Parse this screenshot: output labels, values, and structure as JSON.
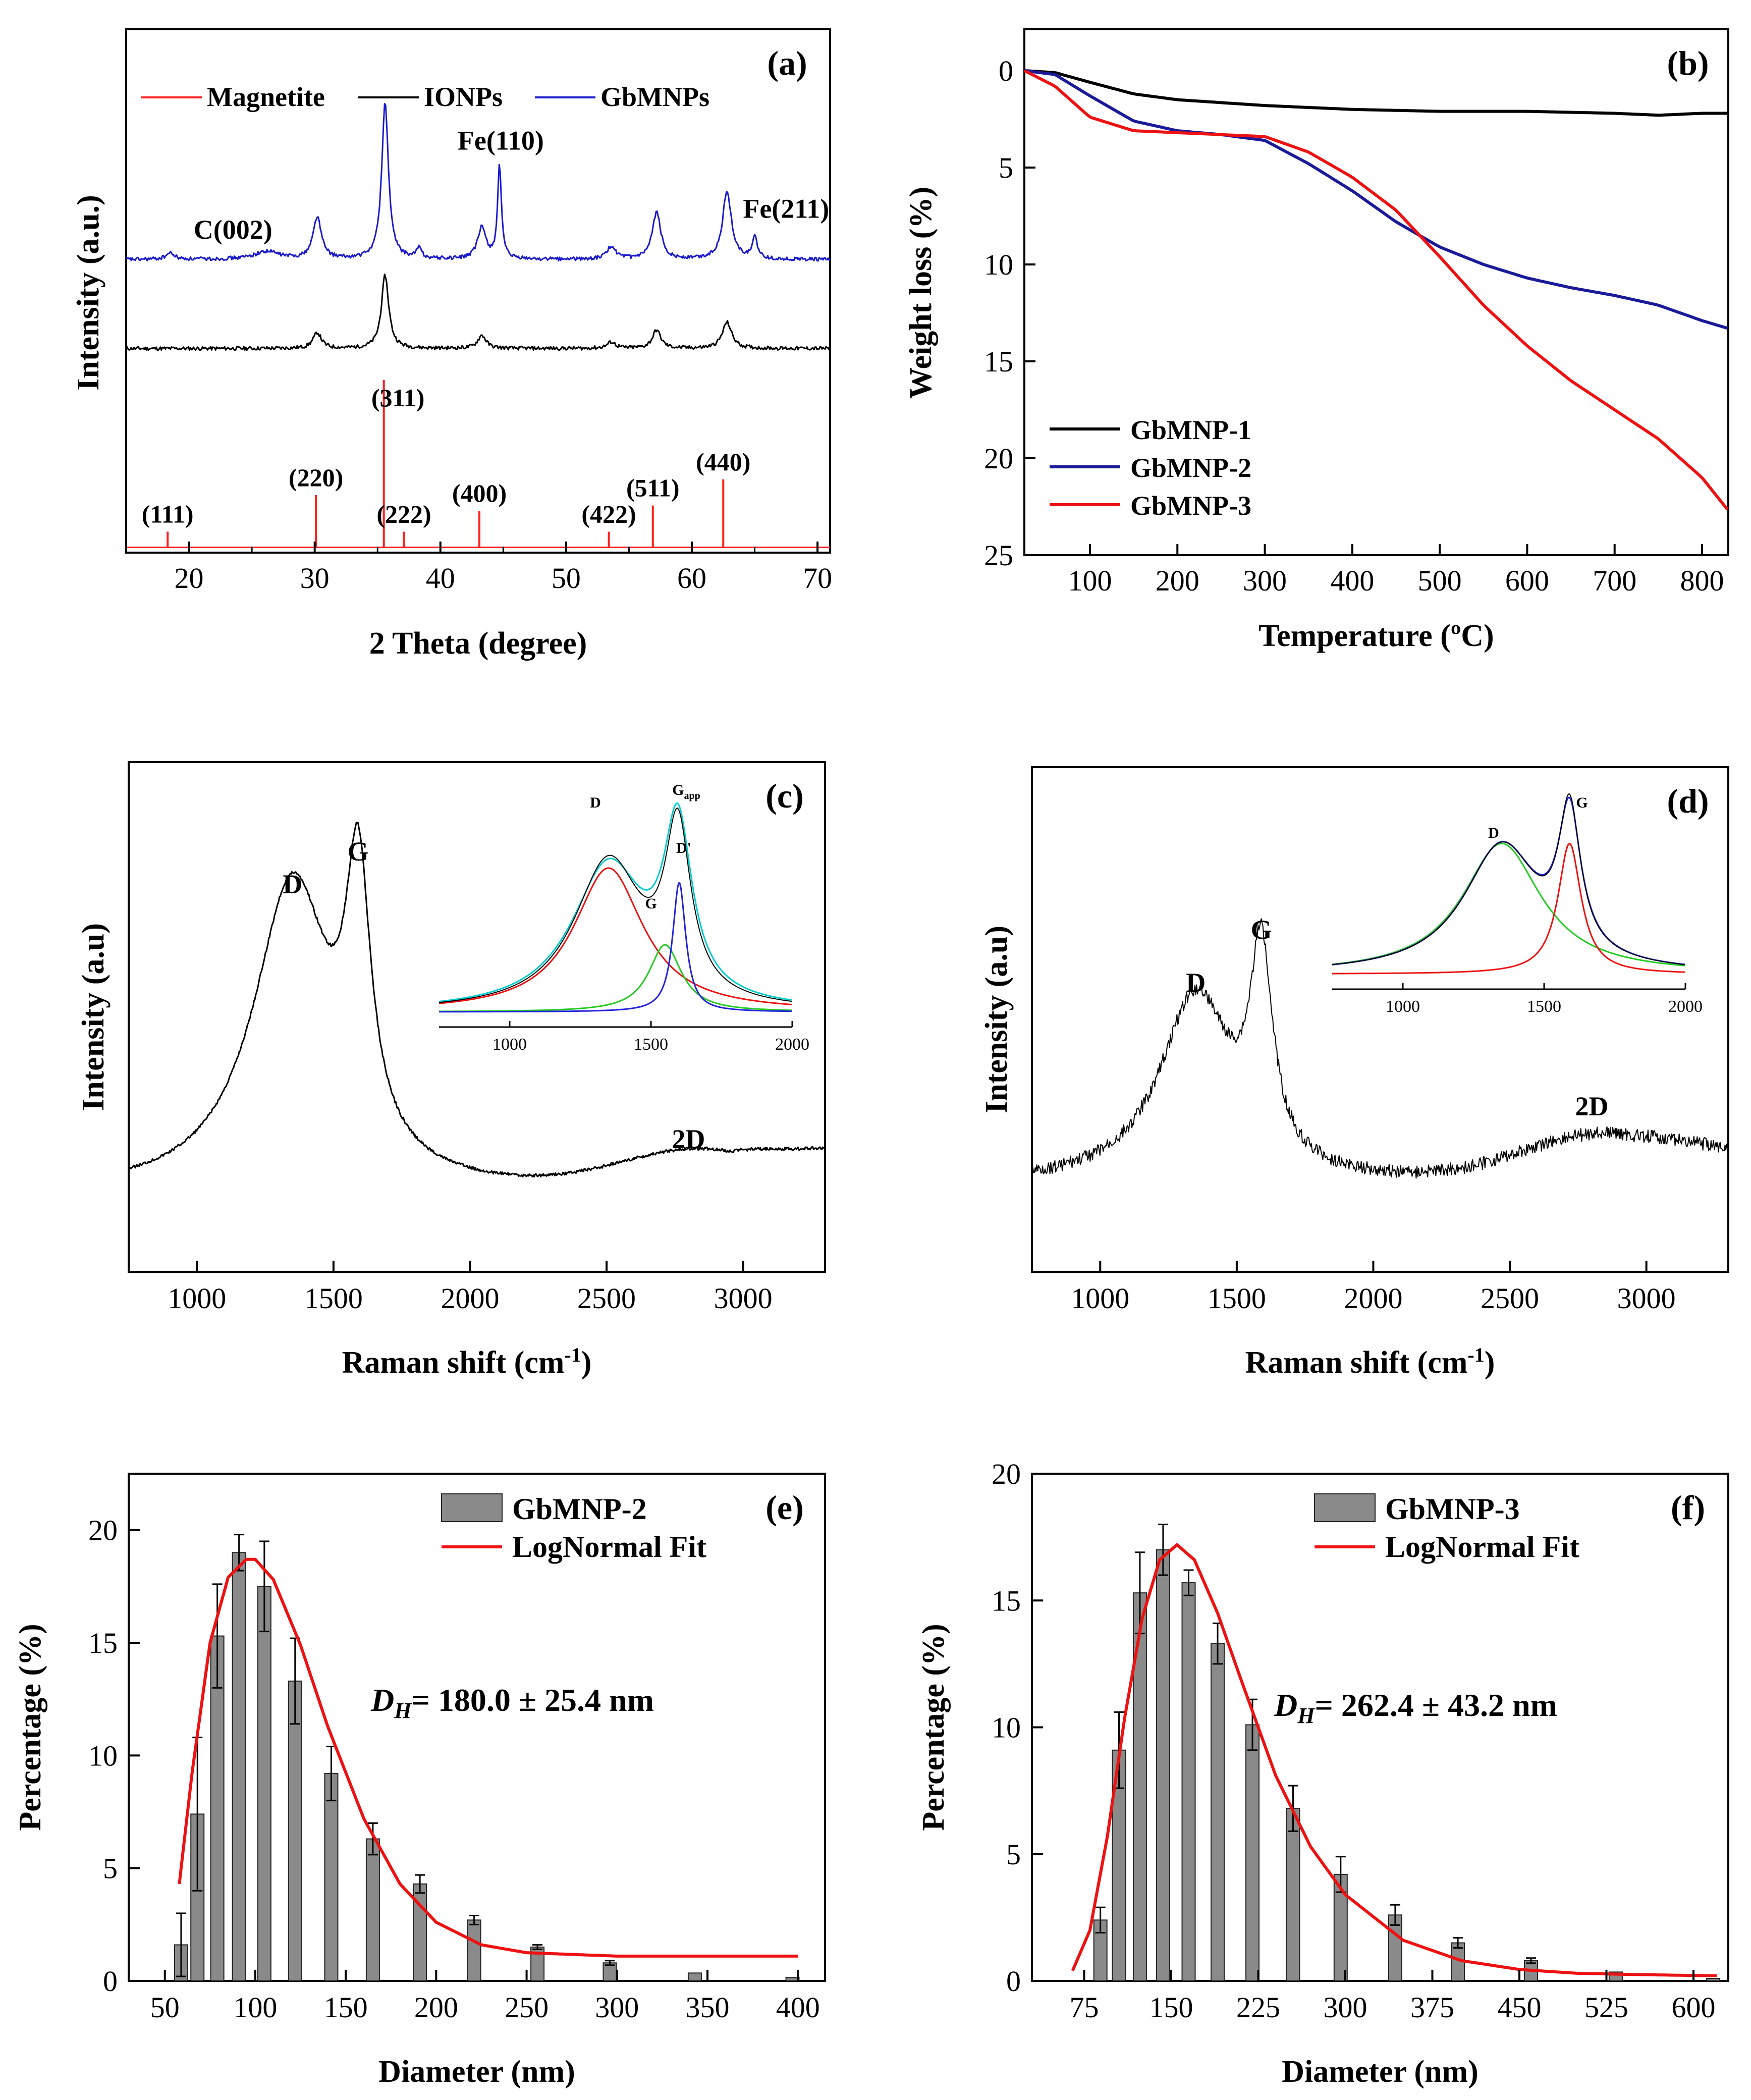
{
  "figure": "Six-panel materials characterization figure",
  "chart_data": [
    {
      "id": "a",
      "type": "line",
      "panel_label": "(a)",
      "xlabel": "2 Theta (degree)",
      "ylabel": "Intensity (a.u.)",
      "xlim": [
        15,
        71
      ],
      "ylim": [
        0,
        100
      ],
      "xticks": [
        20,
        30,
        40,
        50,
        60,
        70
      ],
      "legend": [
        {
          "label": "Magnetite",
          "color": "#ff2020"
        },
        {
          "label": "IONPs",
          "color": "#000000"
        },
        {
          "label": "GbMNPs",
          "color": "#1a1acc"
        }
      ],
      "reference_lines": [
        {
          "x": 18.3,
          "h": 3,
          "label": "(111)"
        },
        {
          "x": 30.1,
          "h": 10,
          "label": "(220)"
        },
        {
          "x": 35.5,
          "h": 32,
          "label": "(311)"
        },
        {
          "x": 37.1,
          "h": 3,
          "label": "(222)"
        },
        {
          "x": 43.1,
          "h": 7,
          "label": "(400)"
        },
        {
          "x": 53.4,
          "h": 3,
          "label": "(422)"
        },
        {
          "x": 56.9,
          "h": 8,
          "label": "(511)"
        },
        {
          "x": 62.5,
          "h": 13,
          "label": "(440)"
        }
      ],
      "series": [
        {
          "name": "IONPs",
          "baseline": 39,
          "peaks": [
            [
              30.2,
              3,
              0.4
            ],
            [
              35.6,
              14,
              0.35
            ],
            [
              43.3,
              2.5,
              0.4
            ],
            [
              53.6,
              1.2,
              0.4
            ],
            [
              57.2,
              3.5,
              0.4
            ],
            [
              62.8,
              5,
              0.45
            ]
          ]
        },
        {
          "name": "GbMNPs",
          "baseline": 56,
          "peaks": [
            [
              18.5,
              1.2,
              0.4
            ],
            [
              26.2,
              1.5,
              1.2
            ],
            [
              30.2,
              8,
              0.4
            ],
            [
              35.6,
              30,
              0.32
            ],
            [
              38.3,
              2,
              0.25
            ],
            [
              43.3,
              6,
              0.4
            ],
            [
              44.7,
              18,
              0.18
            ],
            [
              53.6,
              2.5,
              0.4
            ],
            [
              57.2,
              9,
              0.4
            ],
            [
              62.8,
              13,
              0.42
            ],
            [
              65.0,
              4,
              0.25
            ]
          ]
        }
      ],
      "annotations": [
        {
          "x": 23.5,
          "y": 60,
          "label": "C(002)"
        },
        {
          "x": 44.8,
          "y": 77,
          "label": "Fe(110)"
        },
        {
          "x": 67.5,
          "y": 64,
          "label": "Fe(211)"
        }
      ]
    },
    {
      "id": "b",
      "type": "line",
      "panel_label": "(b)",
      "xlabel": "Temperature (ºC)",
      "ylabel": "Weight loss (%)",
      "xlim": [
        25,
        830
      ],
      "ylim": [
        0,
        25
      ],
      "y_inverted": true,
      "xticks": [
        100,
        200,
        300,
        400,
        500,
        600,
        700,
        800
      ],
      "yticks": [
        0,
        5,
        10,
        15,
        20,
        25
      ],
      "series": [
        {
          "name": "GbMNP-1",
          "color": "#000000",
          "x": [
            25,
            60,
            100,
            150,
            200,
            300,
            400,
            500,
            600,
            700,
            750,
            800,
            830
          ],
          "y": [
            0,
            0.1,
            0.6,
            1.2,
            1.5,
            1.8,
            2.0,
            2.1,
            2.1,
            2.2,
            2.3,
            2.2,
            2.2
          ]
        },
        {
          "name": "GbMNP-2",
          "color": "#1a1a99",
          "x": [
            25,
            60,
            100,
            150,
            200,
            250,
            300,
            350,
            400,
            450,
            500,
            550,
            600,
            650,
            700,
            750,
            800,
            830
          ],
          "y": [
            0,
            0.2,
            1.3,
            2.6,
            3.1,
            3.3,
            3.6,
            4.8,
            6.2,
            7.8,
            9.1,
            10.0,
            10.7,
            11.2,
            11.6,
            12.1,
            12.9,
            13.3
          ]
        },
        {
          "name": "GbMNP-3",
          "color": "#ee1111",
          "x": [
            25,
            60,
            100,
            150,
            200,
            250,
            300,
            350,
            400,
            450,
            500,
            550,
            600,
            650,
            700,
            750,
            800,
            830
          ],
          "y": [
            0,
            0.8,
            2.4,
            3.1,
            3.2,
            3.3,
            3.4,
            4.2,
            5.5,
            7.2,
            9.6,
            12.1,
            14.2,
            16.0,
            17.5,
            19.0,
            21.0,
            22.7
          ]
        }
      ],
      "legend_position": "lower-left"
    },
    {
      "id": "c",
      "type": "line",
      "panel_label": "(c)",
      "xlabel": "Raman shift (cm-1)",
      "ylabel": "Intensity (a.u)",
      "xlim": [
        750,
        3300
      ],
      "xticks": [
        1000,
        1500,
        2000,
        2500,
        3000
      ],
      "peak_labels": [
        "D",
        "G",
        "2D"
      ],
      "inset": {
        "xlim": [
          750,
          2000
        ],
        "xticks": [
          1000,
          1500,
          2000
        ],
        "labels": [
          "D",
          "Gapp",
          "G",
          "D'"
        ]
      }
    },
    {
      "id": "d",
      "type": "line",
      "panel_label": "(d)",
      "xlabel": "Raman shift (cm-1)",
      "ylabel": "Intensity (a.u)",
      "xlim": [
        750,
        3300
      ],
      "xticks": [
        1000,
        1500,
        2000,
        2500,
        3000
      ],
      "peak_labels": [
        "D",
        "G",
        "2D"
      ],
      "inset": {
        "xlim": [
          750,
          2000
        ],
        "xticks": [
          1000,
          1500,
          2000
        ],
        "labels": [
          "D",
          "G"
        ]
      }
    },
    {
      "id": "e",
      "type": "bar",
      "panel_label": "(e)",
      "xlabel": "Diameter (nm)",
      "ylabel": "Percentage (%)",
      "xlim": [
        30,
        415
      ],
      "ylim": [
        0,
        22.5
      ],
      "xticks": [
        50,
        100,
        150,
        200,
        250,
        300,
        350,
        400
      ],
      "yticks": [
        0,
        5,
        10,
        15,
        20
      ],
      "legend": [
        "GbMNP-2",
        "LogNormal Fit"
      ],
      "annotation": "DH= 180.0 ± 25.4 nm",
      "x": [
        59,
        68,
        79,
        91,
        105,
        122,
        142,
        165,
        191,
        221,
        256,
        296,
        343,
        397
      ],
      "values": [
        1.6,
        7.4,
        15.3,
        19.0,
        17.5,
        13.3,
        9.2,
        6.3,
        4.3,
        2.7,
        1.5,
        0.8,
        0.35,
        0.15
      ],
      "errors": [
        1.4,
        3.4,
        2.3,
        0.8,
        2.0,
        1.9,
        1.2,
        0.7,
        0.4,
        0.2,
        0.1,
        0.1,
        0.05,
        0.05
      ],
      "fit": {
        "x": [
          58,
          65,
          75,
          85,
          95,
          100,
          110,
          125,
          140,
          160,
          180,
          200,
          225,
          250,
          300,
          400
        ],
        "y": [
          4.3,
          9.2,
          15.0,
          17.9,
          18.7,
          18.7,
          17.8,
          14.9,
          11.3,
          7.2,
          4.3,
          2.6,
          1.6,
          1.25,
          1.1,
          1.1
        ]
      }
    },
    {
      "id": "f",
      "type": "bar",
      "panel_label": "(f)",
      "xlabel": "Diameter (nm)",
      "ylabel": "Percentage (%)",
      "xlim": [
        30,
        630
      ],
      "ylim": [
        0,
        20
      ],
      "xticks": [
        75,
        150,
        225,
        300,
        375,
        450,
        525,
        600
      ],
      "yticks": [
        0,
        5,
        10,
        15,
        20
      ],
      "legend": [
        "GbMNP-3",
        "LogNormal Fit"
      ],
      "annotation": "DH= 262.4 ± 43.2 nm",
      "x": [
        89,
        105,
        123,
        143,
        165,
        190,
        220,
        255,
        296,
        343,
        397,
        460,
        533,
        617
      ],
      "values": [
        2.4,
        9.1,
        15.3,
        17.0,
        15.7,
        13.3,
        10.1,
        6.8,
        4.2,
        2.6,
        1.5,
        0.8,
        0.35,
        0.1
      ],
      "errors": [
        0.5,
        1.5,
        1.6,
        1.0,
        0.5,
        0.8,
        1.0,
        0.9,
        0.7,
        0.4,
        0.2,
        0.1,
        0.05,
        0.05
      ],
      "fit": {
        "x": [
          65,
          80,
          95,
          110,
          125,
          140,
          155,
          170,
          190,
          210,
          240,
          270,
          300,
          350,
          400,
          450,
          500,
          550,
          620
        ],
        "y": [
          0.4,
          2.0,
          5.7,
          10.4,
          14.3,
          16.6,
          17.2,
          16.6,
          14.5,
          11.9,
          8.1,
          5.3,
          3.4,
          1.6,
          0.8,
          0.45,
          0.3,
          0.25,
          0.2
        ]
      }
    }
  ]
}
